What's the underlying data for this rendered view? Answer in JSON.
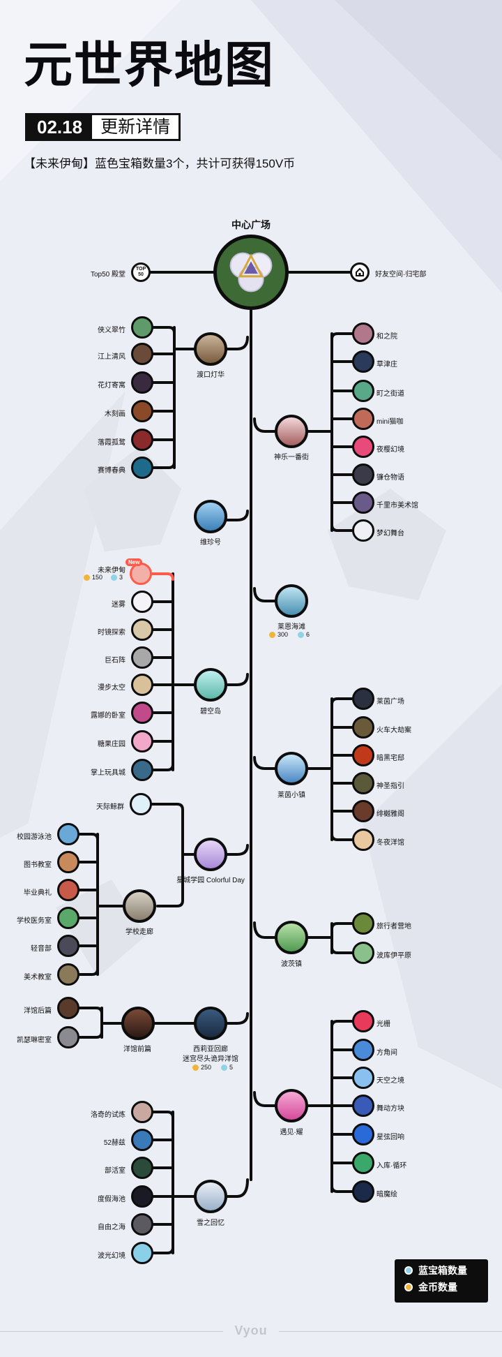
{
  "title": "元世界地图",
  "date_badge": {
    "date": "02.18",
    "text": "更新详情"
  },
  "notice": "【未来伊甸】蓝色宝箱数量3个，共计可获得150V币",
  "center": {
    "label": "中心广场"
  },
  "top_left": {
    "label": "Top50 殿堂",
    "icon_text": "TOP 50"
  },
  "top_right": {
    "label": "好友空间·归宅部"
  },
  "hubs": [
    {
      "label": "渡口灯华",
      "children": [
        "侠义翠竹",
        "江上清风",
        "花灯寄寓",
        "木刻画",
        "落霞孤鹜",
        "赛博春典"
      ]
    },
    {
      "label": "神乐一番街",
      "children": [
        "和之院",
        "草津庄",
        "町之街道",
        "mini猫咖",
        "夜樱幻境",
        "镰仓物语",
        "千里市美术馆",
        "梦幻舞台"
      ]
    },
    {
      "label": "维珍号",
      "children": []
    },
    {
      "label": "莱恩海滩",
      "coins": "300",
      "chests": "6",
      "children": []
    },
    {
      "label": "碧空岛",
      "children": [
        "未来伊甸",
        "迷雾",
        "时镜探索",
        "巨石阵",
        "漫步太空",
        "露娜的卧室",
        "糖果庄园",
        "掌上玩具城"
      ]
    },
    {
      "label": "莱茵小镇",
      "children": [
        "莱茵广场",
        "火车大劫案",
        "暗黑宅邸",
        "神圣指引",
        "绯樾雅阁",
        "冬夜洋馆"
      ]
    },
    {
      "label": "星城学园 Colorful Day",
      "children": [
        "天际鲸群"
      ]
    },
    {
      "label": "学校走廊",
      "children": [
        "校园游泳池",
        "图书教室",
        "毕业典礼",
        "学校医务室",
        "轻音部",
        "美术教室"
      ]
    },
    {
      "label": "波茨镇",
      "children": [
        "旅行者营地",
        "波库伊平原"
      ]
    },
    {
      "label": "洋馆前篇",
      "children": [
        "洋馆后篇",
        "凯瑟琳密室"
      ]
    },
    {
      "label": "西莉亚回廊 迷宫尽头诡异洋馆",
      "label_line1": "西莉亚回廊",
      "label_line2": "迷宫尽头诡异洋馆",
      "coins": "250",
      "chests": "5",
      "children": []
    },
    {
      "label": "遇见·耀",
      "children": [
        "光栅",
        "方角间",
        "天空之境",
        "舞动方块",
        "星弦回响",
        "入库·循环",
        "暗魔绘"
      ]
    },
    {
      "label": "雪之回忆",
      "children": [
        "洛奇的试炼",
        "52赫兹",
        "部活室",
        "度假海池",
        "自由之海",
        "波光幻境"
      ]
    }
  ],
  "future_eden": {
    "label": "未来伊甸",
    "new": "New",
    "coins": "150",
    "chests": "3"
  },
  "legend": {
    "blue": "蓝宝箱数量",
    "gold": "金币数量"
  },
  "footer": "Vyou",
  "colors": {
    "background": "#eceef5",
    "line": "#0d0d0d",
    "accent_red": "#ff5a4a",
    "gold": "#f0b33c",
    "blue": "#8fd3e6",
    "center_green": "#3e6b35"
  }
}
